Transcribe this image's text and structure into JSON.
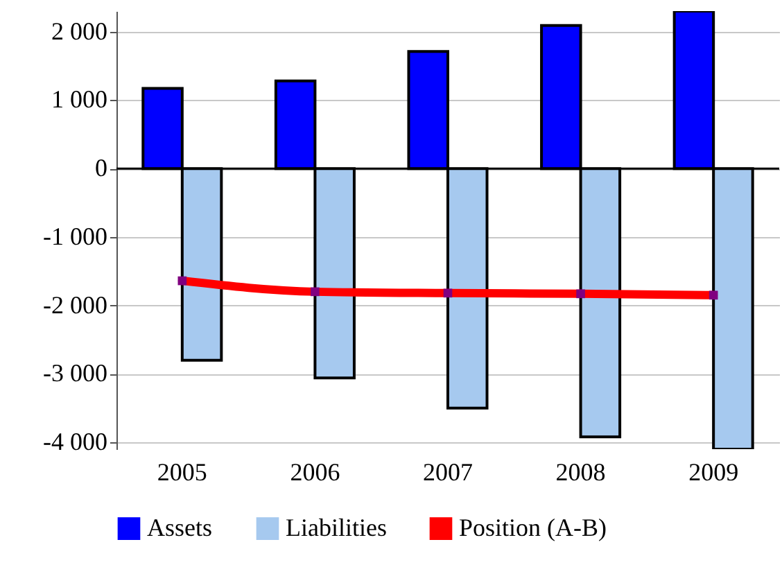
{
  "chart_data": {
    "type": "bar",
    "categories": [
      "2005",
      "2006",
      "2007",
      "2008",
      "2009"
    ],
    "series": [
      {
        "name": "Assets",
        "color": "#0000ff",
        "values": [
          1170,
          1280,
          1710,
          2090,
          2300
        ]
      },
      {
        "name": "Liabilities",
        "color": "#a6c9ef",
        "values": [
          -2800,
          -3060,
          -3500,
          -3920,
          -4100
        ]
      },
      {
        "name": "Position (A-B)",
        "type": "line",
        "color": "#ff0000",
        "values": [
          -1640,
          -1800,
          -1820,
          -1830,
          -1850
        ],
        "marker": "square"
      }
    ],
    "ylim": [
      -4100,
      2300
    ],
    "yticks": [
      {
        "value": -4000,
        "label": "-4 000"
      },
      {
        "value": -3000,
        "label": "-3 000"
      },
      {
        "value": -2000,
        "label": "-2 000"
      },
      {
        "value": -1000,
        "label": "-1 000"
      },
      0,
      {
        "value": 1000,
        "label": "1 000"
      },
      {
        "value": 2000,
        "label": "2 000"
      }
    ],
    "grid": "y",
    "legend": "bottom"
  }
}
